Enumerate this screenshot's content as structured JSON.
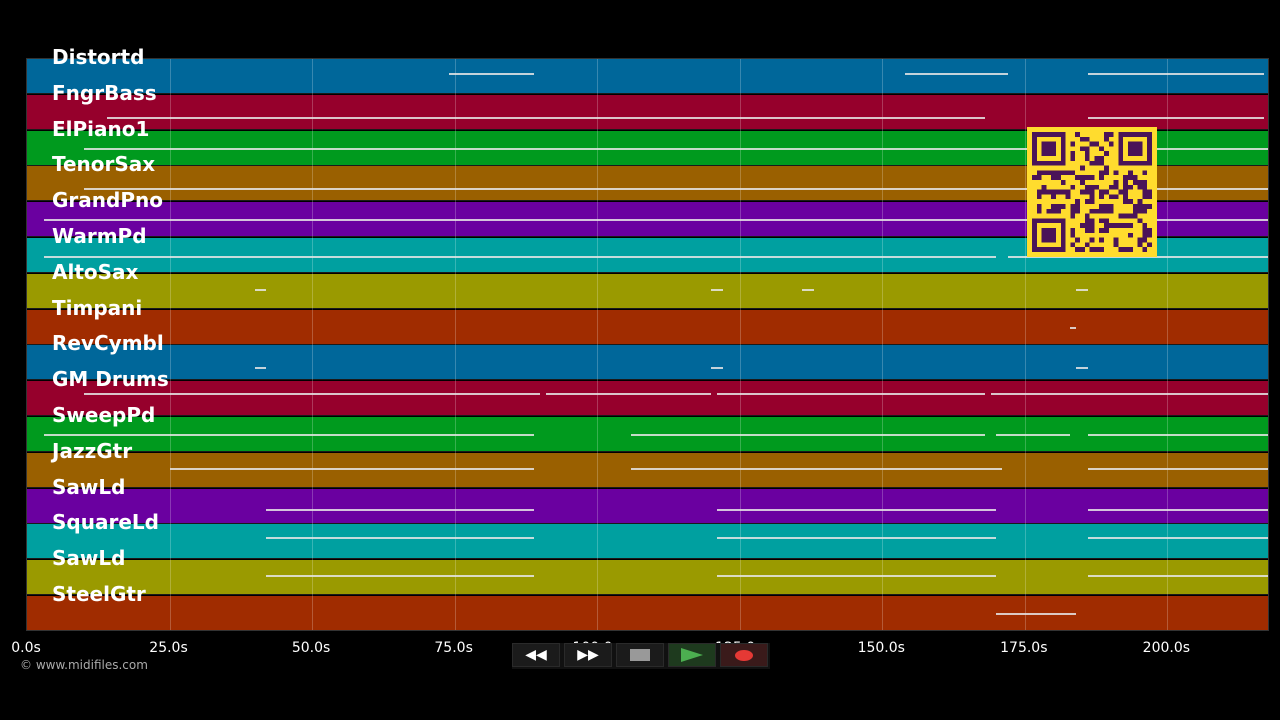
{
  "tracks": [
    {
      "name": "Distortd",
      "color": "#00679a"
    },
    {
      "name": "FngrBass",
      "color": "#96002c"
    },
    {
      "name": "ElPiano1",
      "color": "#009a1e"
    },
    {
      "name": "TenorSax",
      "color": "#9a6000"
    },
    {
      "name": "GrandPno",
      "color": "#6a00a0"
    },
    {
      "name": "WarmPd",
      "color": "#00a0a0"
    },
    {
      "name": "AltoSax",
      "color": "#9a9a00"
    },
    {
      "name": "Timpani",
      "color": "#a02c00"
    },
    {
      "name": "RevCymbl",
      "color": "#00679a"
    },
    {
      "name": "GM Drums",
      "color": "#96002c"
    },
    {
      "name": "SweepPd",
      "color": "#009a1e"
    },
    {
      "name": "JazzGtr",
      "color": "#9a6000"
    },
    {
      "name": "SawLd",
      "color": "#6a00a0"
    },
    {
      "name": "SquareLd",
      "color": "#00a0a0"
    },
    {
      "name": "SawLd",
      "color": "#9a9a00"
    },
    {
      "name": "SteelGtr",
      "color": "#a02c00"
    }
  ],
  "time_axis": {
    "ticks": [
      "0.0s",
      "25.0s",
      "50.0s",
      "75.0s",
      "100.0s",
      "125.0s",
      "150.0s",
      "175.0s",
      "200.0s"
    ],
    "max_seconds": 218
  },
  "copyright": "© www.midifiles.com",
  "transport": {
    "rewind_icon": "rewind-icon",
    "fast_forward_icon": "fast-forward-icon",
    "stop_icon": "stop-icon",
    "play_icon": "play-icon",
    "record_icon": "record-icon",
    "play_color": "#4caf50",
    "record_color": "#e53935"
  },
  "qr_code": {
    "icon": "qr-code-icon",
    "background": "#ffdc2e",
    "foreground": "#4a1458"
  }
}
